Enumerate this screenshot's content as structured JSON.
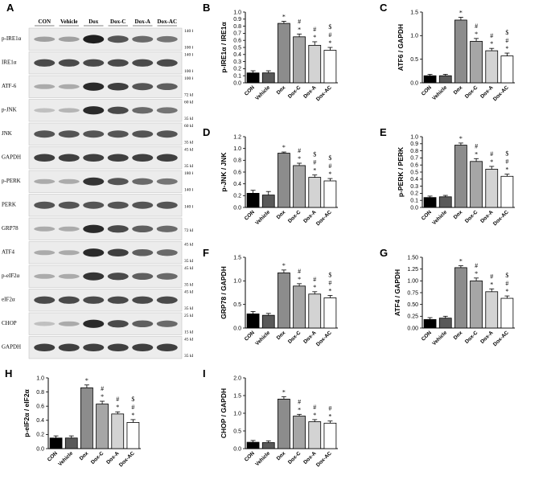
{
  "colors": {
    "con": "#000000",
    "vehicle": "#595959",
    "dox": "#8c8c8c",
    "doxc": "#a6a6a6",
    "doxa": "#d3d3d3",
    "doxac": "#ffffff"
  },
  "blot": {
    "letter": "A",
    "groups": [
      "CON",
      "Vehicle",
      "Dox",
      "Dox-C",
      "Dox-A",
      "Dox-AC"
    ],
    "bands": [
      {
        "label": "p-IRE1α",
        "kda": [
          "140 kDa",
          "100 kDa"
        ],
        "intensity": [
          0.35,
          0.35,
          0.95,
          0.7,
          0.6,
          0.55
        ]
      },
      {
        "label": "IRE1α",
        "kda": [
          "140 kDa",
          "100 kDa"
        ],
        "intensity": [
          0.75,
          0.75,
          0.75,
          0.75,
          0.75,
          0.75
        ]
      },
      {
        "label": "ATF-6",
        "kda": [
          "100 kDa",
          "72 kDa"
        ],
        "intensity": [
          0.3,
          0.3,
          0.9,
          0.8,
          0.7,
          0.65
        ]
      },
      {
        "label": "p-JNK",
        "kda": [
          "60 kDa",
          "35 kDa"
        ],
        "intensity": [
          0.2,
          0.25,
          0.9,
          0.75,
          0.6,
          0.55
        ]
      },
      {
        "label": "JNK",
        "kda": [
          "60 kDa",
          "35 kDa"
        ],
        "intensity": [
          0.7,
          0.7,
          0.7,
          0.7,
          0.7,
          0.7
        ]
      },
      {
        "label": "GAPDH",
        "kda": [
          "45 kDa",
          "35 kDa"
        ],
        "intensity": [
          0.8,
          0.8,
          0.8,
          0.8,
          0.8,
          0.8
        ]
      },
      {
        "label": "p-PERK",
        "kda": [
          "180 kDa",
          "140 kDa"
        ],
        "intensity": [
          0.3,
          0.3,
          0.85,
          0.7,
          0.6,
          0.55
        ]
      },
      {
        "label": "PERK",
        "kda": [
          "140 kDa"
        ],
        "intensity": [
          0.7,
          0.7,
          0.7,
          0.7,
          0.7,
          0.7
        ]
      },
      {
        "label": "GRP78",
        "kda": [
          "72 kDa"
        ],
        "intensity": [
          0.3,
          0.3,
          0.9,
          0.75,
          0.65,
          0.6
        ]
      },
      {
        "label": "ATF4",
        "kda": [
          "45 kDa",
          "35 kDa"
        ],
        "intensity": [
          0.3,
          0.3,
          0.9,
          0.8,
          0.65,
          0.6
        ]
      },
      {
        "label": "p-eIF2α",
        "kda": [
          "45 kDa",
          "35 kDa"
        ],
        "intensity": [
          0.3,
          0.3,
          0.85,
          0.75,
          0.65,
          0.6
        ]
      },
      {
        "label": "eIF2α",
        "kda": [
          "45 kDa",
          "35 kDa"
        ],
        "intensity": [
          0.75,
          0.75,
          0.75,
          0.75,
          0.75,
          0.75
        ]
      },
      {
        "label": "CHOP",
        "kda": [
          "25 kDa",
          "15 kDa"
        ],
        "intensity": [
          0.2,
          0.3,
          0.9,
          0.75,
          0.65,
          0.6
        ]
      },
      {
        "label": "GAPDH",
        "kda": [
          "45 kDa",
          "35 kDa"
        ],
        "intensity": [
          0.8,
          0.8,
          0.8,
          0.8,
          0.8,
          0.8
        ]
      }
    ]
  },
  "chart_data": [
    {
      "id": "B",
      "letter": "B",
      "type": "bar",
      "ylabel": "p-IRE1α / IRE1α",
      "ylim": [
        0,
        1.0
      ],
      "yticks": [
        "0.0",
        "0.1",
        "0.2",
        "0.3",
        "0.4",
        "0.5",
        "0.6",
        "0.7",
        "0.8",
        "0.9",
        "1.0"
      ],
      "categories": [
        "CON",
        "Vehicle",
        "Dox",
        "Dox-C",
        "Dox-A",
        "Dox-AC"
      ],
      "values": [
        0.14,
        0.14,
        0.84,
        0.65,
        0.53,
        0.46
      ],
      "errors": [
        0.03,
        0.03,
        0.03,
        0.04,
        0.05,
        0.04
      ],
      "annotations": [
        [],
        [],
        [
          "*"
        ],
        [
          "*",
          "#"
        ],
        [
          "*",
          "#"
        ],
        [
          "*",
          "#",
          "$"
        ]
      ]
    },
    {
      "id": "C",
      "letter": "C",
      "type": "bar",
      "ylabel": "ATF6 / GAPDH",
      "ylim": [
        0,
        1.5
      ],
      "yticks": [
        "0.0",
        "0.5",
        "1.0",
        "1.5"
      ],
      "categories": [
        "CON",
        "Vehicle",
        "Dox",
        "Dox-C",
        "Dox-A",
        "Dox-AC"
      ],
      "values": [
        0.15,
        0.15,
        1.33,
        0.88,
        0.68,
        0.57
      ],
      "errors": [
        0.03,
        0.03,
        0.06,
        0.06,
        0.05,
        0.06
      ],
      "annotations": [
        [],
        [],
        [
          "*"
        ],
        [
          "*",
          "#"
        ],
        [
          "*",
          "#"
        ],
        [
          "*",
          "#",
          "$"
        ]
      ]
    },
    {
      "id": "D",
      "letter": "D",
      "type": "bar",
      "ylabel": "p-JNK / JNK",
      "ylim": [
        0,
        1.2
      ],
      "yticks": [
        "0.0",
        "0.2",
        "0.4",
        "0.6",
        "0.8",
        "1.0",
        "1.2"
      ],
      "categories": [
        "CON",
        "Vehicle",
        "Dox",
        "Dox-C",
        "Dox-A",
        "Dox-AC"
      ],
      "values": [
        0.24,
        0.21,
        0.92,
        0.71,
        0.51,
        0.45
      ],
      "errors": [
        0.05,
        0.06,
        0.02,
        0.04,
        0.04,
        0.04
      ],
      "annotations": [
        [],
        [],
        [
          "*"
        ],
        [
          "*",
          "#"
        ],
        [
          "*",
          "#",
          "$"
        ],
        [
          "*",
          "#",
          "$"
        ]
      ]
    },
    {
      "id": "E",
      "letter": "E",
      "type": "bar",
      "ylabel": "p-PERK / PERK",
      "ylim": [
        0,
        1.0
      ],
      "yticks": [
        "0.0",
        "0.1",
        "0.2",
        "0.3",
        "0.4",
        "0.5",
        "0.6",
        "0.7",
        "0.8",
        "0.9",
        "1.0"
      ],
      "categories": [
        "CON",
        "Vehicle",
        "Dox",
        "Dox-C",
        "Dox-A",
        "Dox-AC"
      ],
      "values": [
        0.14,
        0.15,
        0.88,
        0.65,
        0.54,
        0.44
      ],
      "errors": [
        0.02,
        0.02,
        0.03,
        0.04,
        0.04,
        0.03
      ],
      "annotations": [
        [],
        [],
        [
          "*"
        ],
        [
          "*",
          "#"
        ],
        [
          "*",
          "#"
        ],
        [
          "*",
          "#",
          "$"
        ]
      ]
    },
    {
      "id": "F",
      "letter": "F",
      "type": "bar",
      "ylabel": "GRP78 / GAPDH",
      "ylim": [
        0,
        1.5
      ],
      "yticks": [
        "0.0",
        "0.5",
        "1.0",
        "1.5"
      ],
      "categories": [
        "CON",
        "Vehicle",
        "Dox",
        "Dox-C",
        "Dox-A",
        "Dox-AC"
      ],
      "values": [
        0.3,
        0.27,
        1.17,
        0.89,
        0.72,
        0.64
      ],
      "errors": [
        0.05,
        0.04,
        0.06,
        0.05,
        0.05,
        0.05
      ],
      "annotations": [
        [],
        [],
        [
          "*"
        ],
        [
          "*",
          "#"
        ],
        [
          "*",
          "#"
        ],
        [
          "*",
          "#",
          "$"
        ]
      ]
    },
    {
      "id": "G",
      "letter": "G",
      "type": "bar",
      "ylabel": "ATF4 / GAPDH",
      "ylim": [
        0,
        1.5
      ],
      "yticks": [
        "0.00",
        "0.25",
        "0.50",
        "0.75",
        "1.00",
        "1.25",
        "1.50"
      ],
      "categories": [
        "CON",
        "Vehicle",
        "Dox",
        "Dox-C",
        "Dox-A",
        "Dox-AC"
      ],
      "values": [
        0.18,
        0.21,
        1.28,
        1.0,
        0.77,
        0.63
      ],
      "errors": [
        0.04,
        0.04,
        0.04,
        0.06,
        0.06,
        0.05
      ],
      "annotations": [
        [],
        [],
        [
          "*"
        ],
        [
          "*",
          "#"
        ],
        [
          "*",
          "#"
        ],
        [
          "*",
          "#",
          "$"
        ]
      ]
    },
    {
      "id": "H",
      "letter": "H",
      "type": "bar",
      "ylabel": "p-eIF2α / eIF2α",
      "ylim": [
        0,
        1.0
      ],
      "yticks": [
        "0.0",
        "0.2",
        "0.4",
        "0.6",
        "0.8",
        "1.0"
      ],
      "categories": [
        "CON",
        "Vehicle",
        "Dox",
        "Dox-C",
        "Dox-A",
        "Dox-AC"
      ],
      "values": [
        0.15,
        0.15,
        0.86,
        0.63,
        0.49,
        0.37
      ],
      "errors": [
        0.03,
        0.03,
        0.04,
        0.04,
        0.03,
        0.04
      ],
      "annotations": [
        [],
        [],
        [
          "*"
        ],
        [
          "*",
          "#"
        ],
        [
          "*",
          "#"
        ],
        [
          "*",
          "#",
          "$"
        ]
      ]
    },
    {
      "id": "I",
      "letter": "I",
      "type": "bar",
      "ylabel": "CHOP / GAPDH",
      "ylim": [
        0,
        2.0
      ],
      "yticks": [
        "0.0",
        "0.5",
        "1.0",
        "1.5",
        "2.0"
      ],
      "categories": [
        "CON",
        "Vehicle",
        "Dox",
        "Dox-C",
        "Dox-A",
        "Dox-AC"
      ],
      "values": [
        0.18,
        0.17,
        1.4,
        0.92,
        0.76,
        0.72
      ],
      "errors": [
        0.05,
        0.05,
        0.07,
        0.05,
        0.06,
        0.06
      ],
      "annotations": [
        [],
        [],
        [
          "*"
        ],
        [
          "*",
          "#"
        ],
        [
          "*",
          "#"
        ],
        [
          "*",
          "#"
        ]
      ]
    }
  ]
}
